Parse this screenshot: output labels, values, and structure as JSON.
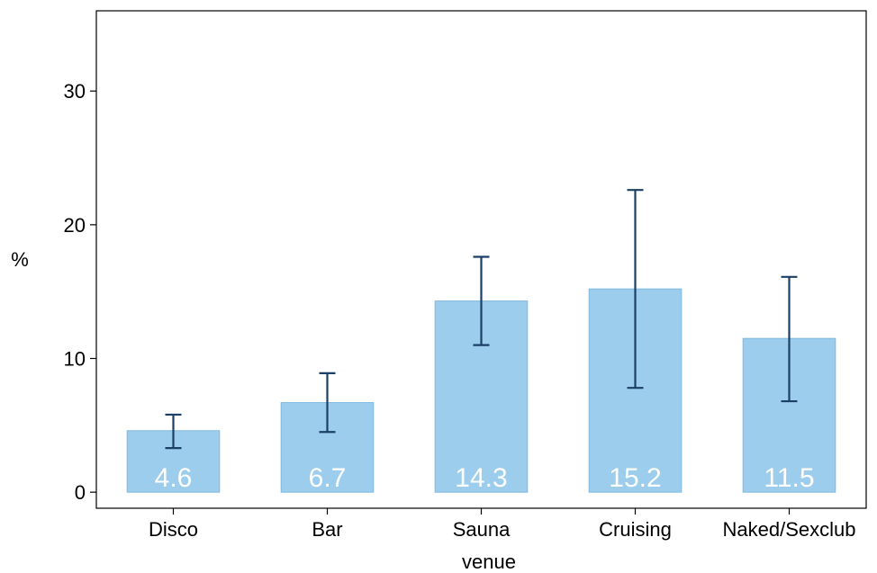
{
  "chart_data": {
    "type": "bar",
    "categories": [
      "Disco",
      "Bar",
      "Sauna",
      "Cruising",
      "Naked/Sexclub"
    ],
    "values": [
      4.6,
      6.7,
      14.3,
      15.2,
      11.5
    ],
    "data_labels": [
      "4.6",
      "6.7",
      "14.3",
      "15.2",
      "11.5"
    ],
    "error_low": [
      3.3,
      4.5,
      11.0,
      7.8,
      6.8
    ],
    "error_high": [
      5.8,
      8.9,
      17.6,
      22.6,
      16.1
    ],
    "xlabel": "venue",
    "ylabel": "%",
    "ylim": [
      -1.2,
      36
    ],
    "yticks": [
      0,
      10,
      20,
      30
    ],
    "ytick_labels": [
      "0",
      "10",
      "20",
      "30"
    ],
    "bar_color": "#9dcded",
    "bar_edge_color": "#7fb8de",
    "error_color": "#1b3f66",
    "grid": false,
    "legend": "none"
  }
}
